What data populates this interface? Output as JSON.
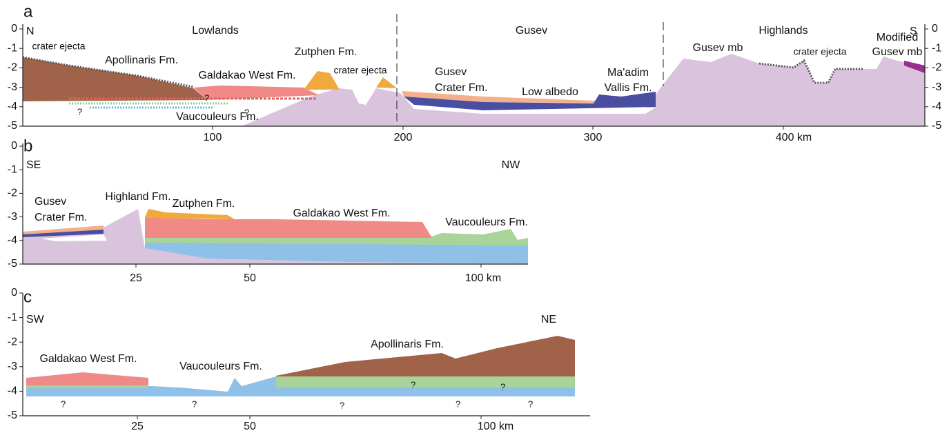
{
  "panels": [
    {
      "label": "a",
      "directions": [
        "N",
        "S"
      ],
      "regions": [
        "Lowlands",
        "Gusev",
        "Highlands"
      ],
      "left_ticks": [
        "0",
        "-1",
        "-2",
        "-3",
        "-4",
        "-5"
      ],
      "right_ticks": [
        "0",
        "-1",
        "-2",
        "-3",
        "-4",
        "-5"
      ],
      "x_ticks": [
        "100",
        "200",
        "300",
        "400 km"
      ],
      "units": [
        "crater ejecta",
        "Apollinaris Fm.",
        "Galdakao West Fm.",
        "Zutphen Fm.",
        "crater ejecta",
        [
          "Gusev",
          "Crater Fm."
        ],
        "Low albedo",
        [
          "Ma'adim",
          "Vallis Fm."
        ],
        "Gusev mb",
        "crater ejecta",
        [
          "Modified",
          "Gusev mb"
        ],
        "Vaucouleurs Fm."
      ],
      "queries": [
        "?",
        "?",
        "?"
      ]
    },
    {
      "label": "b",
      "directions": [
        "SE",
        "NW"
      ],
      "left_ticks": [
        "0",
        "-1",
        "-2",
        "-3",
        "-4",
        "-5"
      ],
      "x_ticks": [
        "25",
        "50",
        "100 km"
      ],
      "units": [
        [
          "Gusev",
          "Crater Fm."
        ],
        "Highland Fm.",
        "Zutphen Fm.",
        "Galdakao West Fm.",
        "Vaucouleurs Fm."
      ]
    },
    {
      "label": "c",
      "directions": [
        "SW",
        "NE"
      ],
      "left_ticks": [
        "0",
        "-1",
        "-2",
        "-3",
        "-4",
        "-5"
      ],
      "x_ticks": [
        "25",
        "50",
        "100 km"
      ],
      "units": [
        "Galdakao West Fm.",
        "Vaucouleurs Fm.",
        "Apollinaris Fm."
      ],
      "queries": [
        "?",
        "?",
        "?",
        "?",
        "?",
        "?",
        "?"
      ]
    }
  ]
}
